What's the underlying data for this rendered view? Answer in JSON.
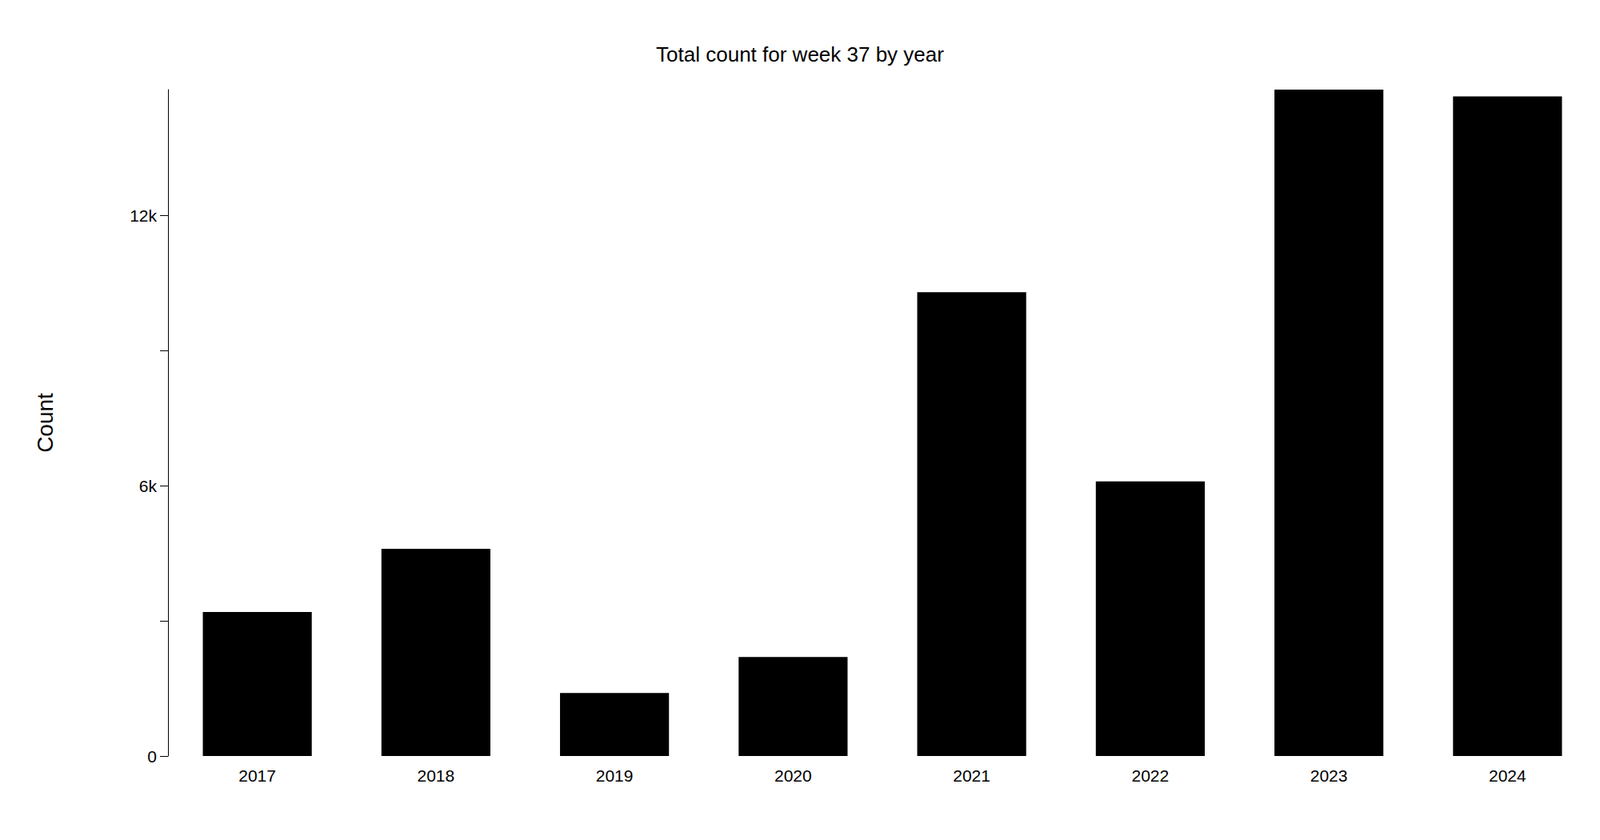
{
  "chart_data": {
    "type": "bar",
    "title": "Total count for week 37 by year",
    "y_label": "Count",
    "categories": [
      "2017",
      "2018",
      "2019",
      "2020",
      "2021",
      "2022",
      "2023",
      "2024"
    ],
    "values": [
      3200,
      4600,
      1400,
      2200,
      10300,
      6100,
      14800,
      14650
    ],
    "color": "#000000",
    "ylim": [
      0,
      14800
    ],
    "yticks": [
      0,
      {
        "value": 6000,
        "label": "6k"
      },
      {
        "value": 12000,
        "label": "12k"
      }
    ],
    "grid": false
  }
}
